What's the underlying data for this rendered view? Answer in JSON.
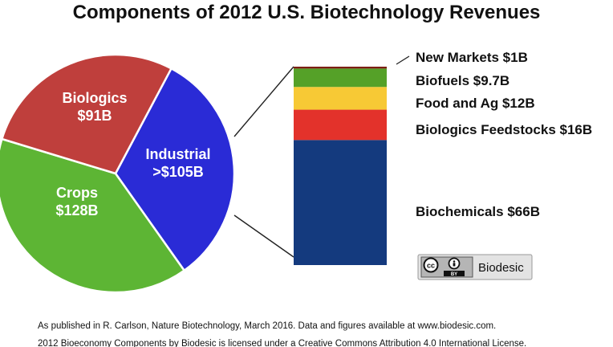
{
  "chart_data": [
    {
      "type": "pie",
      "title": "Components of 2012 U.S. Biotechnology Revenues",
      "slices": [
        {
          "name": "Industrial",
          "value": 105,
          "label_line1": "Industrial",
          "label_line2": ">$105B",
          "color": "#2a2bd6"
        },
        {
          "name": "Crops",
          "value": 128,
          "label_line1": "Crops",
          "label_line2": "$128B",
          "color": "#5db534"
        },
        {
          "name": "Biologics",
          "value": 91,
          "label_line1": "Biologics",
          "label_line2": "$91B",
          "color": "#bf3f3c"
        }
      ]
    },
    {
      "type": "bar",
      "stacked": true,
      "unit": "$B",
      "segments": [
        {
          "name": "Biochemicals",
          "value": 66,
          "label": "Biochemicals $66B",
          "color": "#143a7e"
        },
        {
          "name": "Biologics Feedstocks",
          "value": 16,
          "label": "Biologics Feedstocks $16B",
          "color": "#e3322b"
        },
        {
          "name": "Food and Ag",
          "value": 12,
          "label": "Food and Ag $12B",
          "color": "#f7c935"
        },
        {
          "name": "Biofuels",
          "value": 9.7,
          "label": "Biofuels $9.7B",
          "color": "#55a128"
        },
        {
          "name": "New Markets",
          "value": 1,
          "label": "New Markets $1B",
          "color": "#7d1f14"
        }
      ]
    }
  ],
  "badge": {
    "text": "Biodesic",
    "cc": "cc",
    "by": "BY"
  },
  "footer": {
    "line1": "As published in R. Carlson, Nature Biotechnology, March 2016. Data and figures available at www.biodesic.com.",
    "line2": "2012 Bioeconomy Components by Biodesic is licensed under a Creative Commons Attribution 4.0 International License."
  }
}
